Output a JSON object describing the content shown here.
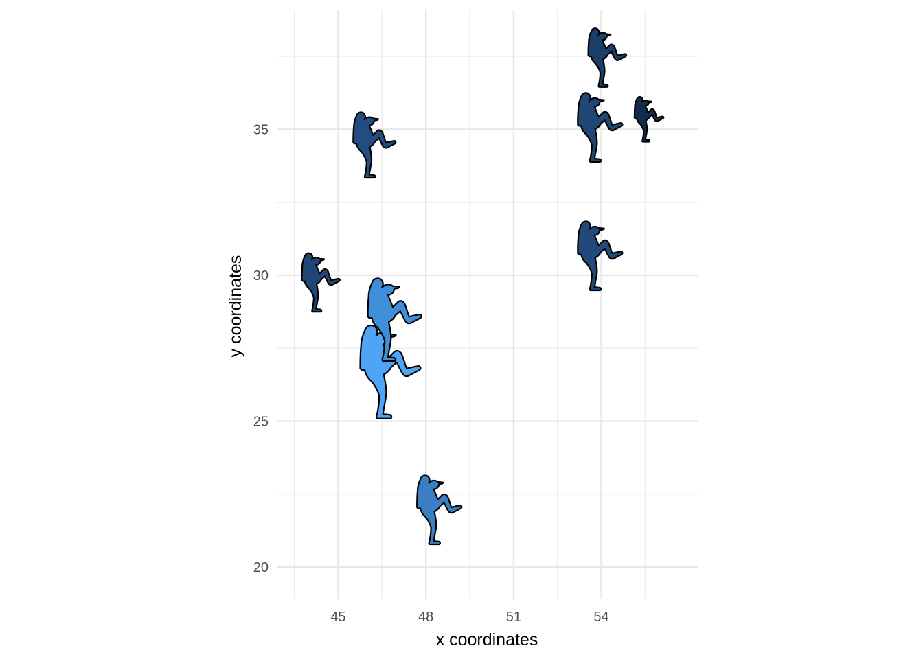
{
  "chart_data": {
    "type": "scatter",
    "marker": "baseball-pitcher-silhouette",
    "title": "",
    "xlabel": "x coordinates",
    "ylabel": "y coordinates",
    "xlim": [
      42.9,
      57.3
    ],
    "ylim": [
      18.9,
      39.1
    ],
    "x_ticks": [
      45,
      48,
      51,
      54
    ],
    "x_tick_labels": [
      "45",
      "48",
      "51",
      "54"
    ],
    "x_minor_ticks": [
      43.5,
      46.5,
      49.5,
      52.5,
      55.5
    ],
    "y_ticks": [
      20,
      25,
      30,
      35
    ],
    "y_tick_labels": [
      "20",
      "25",
      "30",
      "35"
    ],
    "y_minor_ticks": [
      22.5,
      27.5,
      32.5,
      37.5
    ],
    "grid": true,
    "legend": "none",
    "points": [
      {
        "x": 46.3,
        "y": 26.6,
        "size": 1.35,
        "color": "#4ea5f5"
      },
      {
        "x": 46.5,
        "y": 28.4,
        "size": 1.2,
        "color": "#3f8ed8"
      },
      {
        "x": 48.1,
        "y": 21.9,
        "size": 1.0,
        "color": "#3a7fc4"
      },
      {
        "x": 44.1,
        "y": 29.7,
        "size": 0.85,
        "color": "#1f4675"
      },
      {
        "x": 45.9,
        "y": 34.4,
        "size": 0.95,
        "color": "#234d80"
      },
      {
        "x": 53.6,
        "y": 30.6,
        "size": 1.0,
        "color": "#214a7a"
      },
      {
        "x": 53.6,
        "y": 35.0,
        "size": 1.0,
        "color": "#1f4675"
      },
      {
        "x": 53.9,
        "y": 37.4,
        "size": 0.85,
        "color": "#1c3e6a"
      },
      {
        "x": 55.4,
        "y": 35.3,
        "size": 0.65,
        "color": "#132b4d"
      }
    ]
  }
}
